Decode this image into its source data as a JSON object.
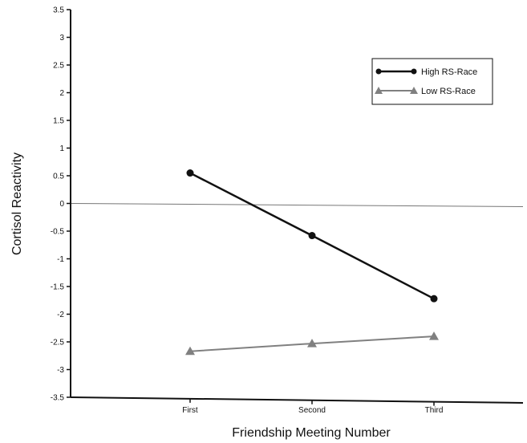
{
  "chart_data": {
    "type": "line",
    "title": "",
    "xlabel": "Friendship Meeting Number",
    "ylabel": "Cortisol Reactivity",
    "categories": [
      "First",
      "Second",
      "Third"
    ],
    "ylim": [
      -3.5,
      3.5
    ],
    "yticks": [
      "3.5",
      "3",
      "2.5",
      "2",
      "1.5",
      "1",
      "0.5",
      "0",
      "-0.5",
      "-1",
      "-1.5",
      "-2",
      "-2.5",
      "-3",
      "-3.5"
    ],
    "grid": false,
    "zero_line": true,
    "legend_position": "top-right",
    "series": [
      {
        "name": "High RS-Race",
        "marker": "circle",
        "color": "#111111",
        "values": [
          0.55,
          -0.58,
          -1.72
        ]
      },
      {
        "name": "Low RS-Race",
        "marker": "triangle",
        "color": "#808080",
        "values": [
          -2.67,
          -2.53,
          -2.4
        ]
      }
    ]
  }
}
